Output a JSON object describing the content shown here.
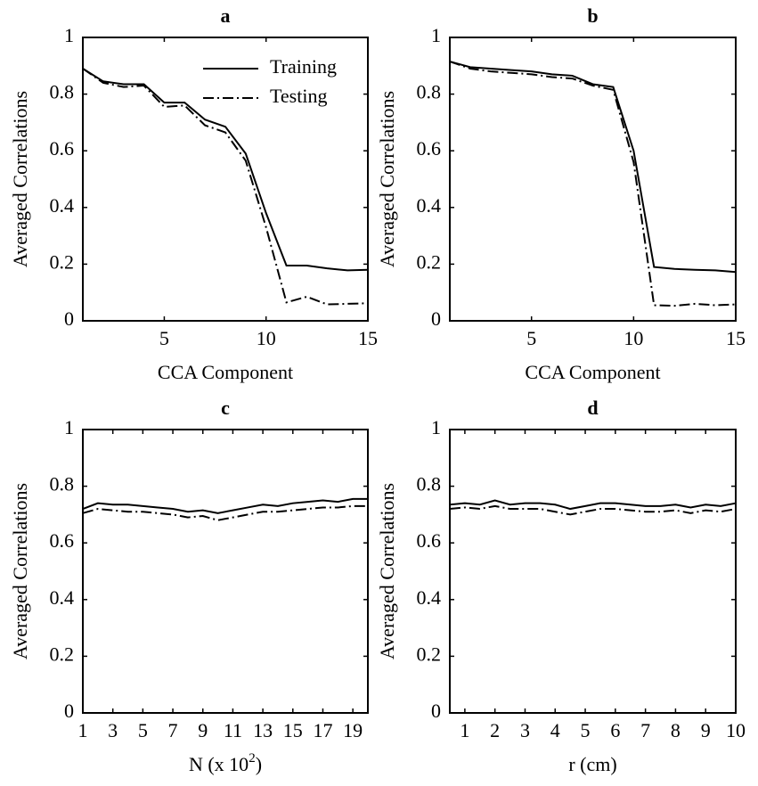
{
  "chart_data": [
    {
      "type": "line",
      "title": "a",
      "xlabel": [
        "CCA Component"
      ],
      "ylabel": "Averaged Correlations",
      "x": [
        1,
        2,
        3,
        4,
        5,
        6,
        7,
        8,
        9,
        10,
        11,
        12,
        13,
        14,
        15
      ],
      "series": [
        {
          "name": "Training",
          "color": "#000000",
          "dash": "solid",
          "values": [
            0.89,
            0.845,
            0.835,
            0.835,
            0.77,
            0.77,
            0.71,
            0.685,
            0.59,
            0.38,
            0.195,
            0.195,
            0.185,
            0.178,
            0.18
          ]
        },
        {
          "name": "Testing",
          "color": "#000000",
          "dash": "dashdot",
          "values": [
            0.89,
            0.84,
            0.825,
            0.83,
            0.755,
            0.76,
            0.69,
            0.665,
            0.565,
            0.33,
            0.065,
            0.085,
            0.058,
            0.06,
            0.062
          ]
        }
      ],
      "xlim": [
        1,
        15
      ],
      "xticks": [
        5,
        10,
        15
      ],
      "ylim": [
        0,
        1
      ],
      "yticks": [
        0,
        0.2,
        0.4,
        0.6,
        0.8,
        1
      ],
      "legend": "upper right"
    },
    {
      "type": "line",
      "title": "b",
      "xlabel": [
        "CCA Component"
      ],
      "ylabel": "Averaged Correlations",
      "x": [
        1,
        2,
        3,
        4,
        5,
        6,
        7,
        8,
        9,
        10,
        11,
        12,
        13,
        14,
        15
      ],
      "series": [
        {
          "color": "#000000",
          "dash": "solid",
          "values": [
            0.915,
            0.895,
            0.89,
            0.885,
            0.88,
            0.87,
            0.865,
            0.835,
            0.825,
            0.6,
            0.19,
            0.183,
            0.18,
            0.178,
            0.172
          ]
        },
        {
          "color": "#000000",
          "dash": "dashdot",
          "values": [
            0.915,
            0.89,
            0.88,
            0.875,
            0.87,
            0.86,
            0.855,
            0.83,
            0.815,
            0.56,
            0.055,
            0.053,
            0.06,
            0.055,
            0.058
          ]
        }
      ],
      "xlim": [
        1,
        15
      ],
      "xticks": [
        5,
        10,
        15
      ],
      "ylim": [
        0,
        1
      ],
      "yticks": [
        0,
        0.2,
        0.4,
        0.6,
        0.8,
        1
      ]
    },
    {
      "type": "line",
      "title": "c",
      "xlabel": [
        "N (x 10",
        "2",
        ")"
      ],
      "ylabel": "Averaged Correlations",
      "x": [
        1,
        2,
        3,
        4,
        5,
        6,
        7,
        8,
        9,
        10,
        11,
        12,
        13,
        14,
        15,
        16,
        17,
        18,
        19,
        20
      ],
      "series": [
        {
          "color": "#000000",
          "dash": "solid",
          "values": [
            0.72,
            0.74,
            0.735,
            0.735,
            0.73,
            0.725,
            0.72,
            0.71,
            0.715,
            0.705,
            0.715,
            0.725,
            0.735,
            0.73,
            0.74,
            0.745,
            0.75,
            0.745,
            0.755,
            0.755
          ]
        },
        {
          "color": "#000000",
          "dash": "dashdot",
          "values": [
            0.705,
            0.72,
            0.715,
            0.71,
            0.71,
            0.705,
            0.7,
            0.69,
            0.695,
            0.68,
            0.69,
            0.7,
            0.71,
            0.71,
            0.715,
            0.72,
            0.725,
            0.725,
            0.73,
            0.73
          ]
        }
      ],
      "xlim": [
        1,
        20
      ],
      "xticks": [
        1,
        3,
        5,
        7,
        9,
        11,
        13,
        15,
        17,
        19
      ],
      "ylim": [
        0,
        1
      ],
      "yticks": [
        0,
        0.2,
        0.4,
        0.6,
        0.8,
        1
      ]
    },
    {
      "type": "line",
      "title": "d",
      "xlabel": [
        "r (cm)"
      ],
      "ylabel": "Averaged Correlations",
      "x": [
        0.5,
        1,
        1.5,
        2,
        2.5,
        3,
        3.5,
        4,
        4.5,
        5,
        5.5,
        6,
        6.5,
        7,
        7.5,
        8,
        8.5,
        9,
        9.5,
        10
      ],
      "series": [
        {
          "color": "#000000",
          "dash": "solid",
          "values": [
            0.735,
            0.74,
            0.735,
            0.75,
            0.735,
            0.74,
            0.74,
            0.735,
            0.72,
            0.73,
            0.74,
            0.74,
            0.735,
            0.73,
            0.73,
            0.735,
            0.725,
            0.735,
            0.73,
            0.74
          ]
        },
        {
          "color": "#000000",
          "dash": "dashdot",
          "values": [
            0.72,
            0.725,
            0.72,
            0.73,
            0.72,
            0.72,
            0.72,
            0.71,
            0.7,
            0.71,
            0.72,
            0.72,
            0.715,
            0.71,
            0.71,
            0.715,
            0.705,
            0.715,
            0.71,
            0.72
          ]
        }
      ],
      "xlim": [
        0.5,
        10
      ],
      "xticks": [
        1,
        2,
        3,
        4,
        5,
        6,
        7,
        8,
        9,
        10
      ],
      "ylim": [
        0,
        1
      ],
      "yticks": [
        0,
        0.2,
        0.4,
        0.6,
        0.8,
        1
      ]
    }
  ]
}
